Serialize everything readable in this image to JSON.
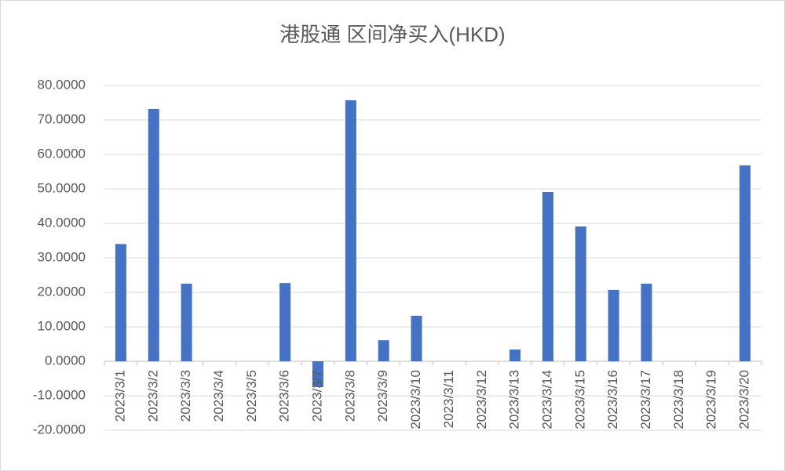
{
  "chart_data": {
    "type": "bar",
    "title": "港股通 区间净买入(HKD)",
    "categories": [
      "2023/3/1",
      "2023/3/2",
      "2023/3/3",
      "2023/3/4",
      "2023/3/5",
      "2023/3/6",
      "2023/3/7",
      "2023/3/8",
      "2023/3/9",
      "2023/3/10",
      "2023/3/11",
      "2023/3/12",
      "2023/3/13",
      "2023/3/14",
      "2023/3/15",
      "2023/3/16",
      "2023/3/17",
      "2023/3/18",
      "2023/3/19",
      "2023/3/20"
    ],
    "values": [
      34,
      73.2,
      22.5,
      null,
      null,
      22.7,
      -7.5,
      75.7,
      6.1,
      13.2,
      null,
      null,
      3.4,
      49.1,
      39.1,
      20.7,
      22.5,
      null,
      null,
      56.8
    ],
    "color": "#4472c4",
    "ylim": [
      -20,
      80
    ],
    "yticks": [
      {
        "value": -20,
        "label": "-20.0000"
      },
      {
        "value": -10,
        "label": "-10.0000"
      },
      {
        "value": 0,
        "label": "0.0000"
      },
      {
        "value": 10,
        "label": "10.0000"
      },
      {
        "value": 20,
        "label": "20.0000"
      },
      {
        "value": 30,
        "label": "30.0000"
      },
      {
        "value": 40,
        "label": "40.0000"
      },
      {
        "value": 50,
        "label": "50.0000"
      },
      {
        "value": 60,
        "label": "60.0000"
      },
      {
        "value": 70,
        "label": "70.0000"
      },
      {
        "value": 80,
        "label": "80.0000"
      }
    ],
    "grid": true
  }
}
